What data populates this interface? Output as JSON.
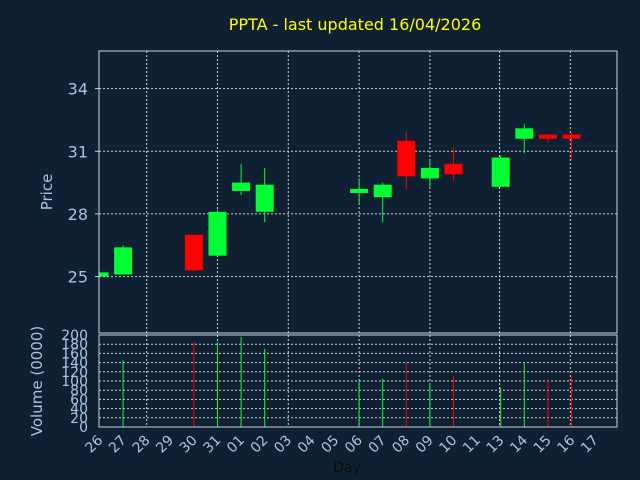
{
  "title": "PPTA - last updated 16/04/2026",
  "colors": {
    "background": "#0f2033",
    "grid": "#c8d2dc",
    "axis_text": "#a9c4e4",
    "title": "#ffff00",
    "up": "#00ff33",
    "down": "#ff0000"
  },
  "chart_data": [
    {
      "type": "candlestick",
      "ylabel": "Price",
      "ylim": [
        22.3,
        35.8
      ],
      "yticks": [
        25,
        28,
        31,
        34
      ],
      "grid": true,
      "categories": [
        "26",
        "27",
        "28",
        "29",
        "30",
        "31",
        "01",
        "02",
        "03",
        "04",
        "05",
        "06",
        "07",
        "08",
        "09",
        "10",
        "11",
        "13",
        "14",
        "15",
        "16",
        "17"
      ],
      "candles": [
        {
          "x": "26",
          "open": 25.0,
          "high": 25.2,
          "low": 25.0,
          "close": 25.2
        },
        {
          "x": "27",
          "open": 25.1,
          "high": 26.5,
          "low": 25.1,
          "close": 26.4
        },
        {
          "x": "30",
          "open": 27.0,
          "high": 27.0,
          "low": 25.2,
          "close": 25.3
        },
        {
          "x": "31",
          "open": 26.0,
          "high": 28.2,
          "low": 26.0,
          "close": 28.1
        },
        {
          "x": "01",
          "open": 29.1,
          "high": 30.4,
          "low": 28.9,
          "close": 29.5
        },
        {
          "x": "02",
          "open": 28.1,
          "high": 30.2,
          "low": 27.6,
          "close": 29.4
        },
        {
          "x": "06",
          "open": 29.0,
          "high": 29.7,
          "low": 28.5,
          "close": 29.2
        },
        {
          "x": "07",
          "open": 28.8,
          "high": 29.5,
          "low": 27.6,
          "close": 29.4
        },
        {
          "x": "08",
          "open": 31.5,
          "high": 31.9,
          "low": 29.2,
          "close": 29.8
        },
        {
          "x": "09",
          "open": 29.7,
          "high": 30.6,
          "low": 29.3,
          "close": 30.2
        },
        {
          "x": "10",
          "open": 30.4,
          "high": 31.2,
          "low": 29.6,
          "close": 29.9
        },
        {
          "x": "13",
          "open": 29.3,
          "high": 30.8,
          "low": 29.3,
          "close": 30.7
        },
        {
          "x": "14",
          "open": 31.6,
          "high": 32.3,
          "low": 30.9,
          "close": 32.1
        },
        {
          "x": "15",
          "open": 31.8,
          "high": 31.8,
          "low": 31.4,
          "close": 31.6
        },
        {
          "x": "16",
          "open": 31.8,
          "high": 31.9,
          "low": 30.6,
          "close": 31.6
        }
      ]
    },
    {
      "type": "bar",
      "ylabel": "Volume (0000)",
      "xlabel": "Day",
      "ylim": [
        0,
        200
      ],
      "yticks": [
        0,
        20,
        40,
        60,
        80,
        100,
        120,
        140,
        160,
        180,
        200
      ],
      "categories": [
        "26",
        "27",
        "28",
        "29",
        "30",
        "31",
        "01",
        "02",
        "03",
        "04",
        "05",
        "06",
        "07",
        "08",
        "09",
        "10",
        "11",
        "13",
        "14",
        "15",
        "16",
        "17"
      ],
      "bars": [
        {
          "x": "27",
          "value": 145,
          "dir": "up"
        },
        {
          "x": "30",
          "value": 185,
          "dir": "down"
        },
        {
          "x": "31",
          "value": 185,
          "dir": "up"
        },
        {
          "x": "01",
          "value": 195,
          "dir": "up"
        },
        {
          "x": "02",
          "value": 170,
          "dir": "up"
        },
        {
          "x": "06",
          "value": 100,
          "dir": "up"
        },
        {
          "x": "07",
          "value": 105,
          "dir": "up"
        },
        {
          "x": "08",
          "value": 140,
          "dir": "down"
        },
        {
          "x": "09",
          "value": 95,
          "dir": "up"
        },
        {
          "x": "10",
          "value": 110,
          "dir": "down"
        },
        {
          "x": "13",
          "value": 85,
          "dir": "up"
        },
        {
          "x": "14",
          "value": 140,
          "dir": "up"
        },
        {
          "x": "15",
          "value": 105,
          "dir": "down"
        },
        {
          "x": "16",
          "value": 110,
          "dir": "down"
        }
      ]
    }
  ]
}
